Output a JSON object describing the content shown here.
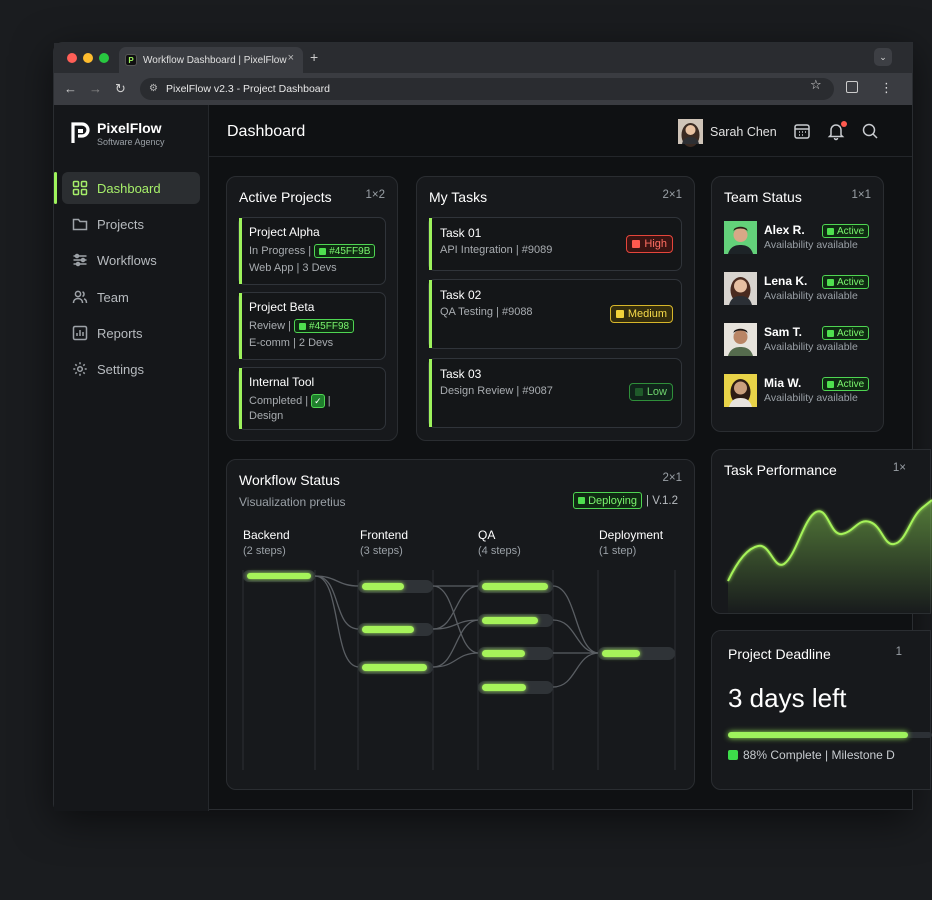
{
  "browser": {
    "tab_title": "Workflow Dashboard | PixelFlow",
    "tab_favicon": "P",
    "close_glyph": "×",
    "new_tab_glyph": "+",
    "tab_menu_glyph": "⌄",
    "url": "PixelFlow v2.3 - Project Dashboard",
    "back_glyph": "←",
    "forward_glyph": "→",
    "reload_glyph": "↻",
    "site_info_glyph": "⚙",
    "star_glyph": "☆",
    "menu_glyph": "⋮"
  },
  "sidebar": {
    "brand": "PixelFlow",
    "subtitle": "Software Agency",
    "items": [
      {
        "label": "Dashboard",
        "icon": "grid-icon"
      },
      {
        "label": "Projects",
        "icon": "folder-icon"
      },
      {
        "label": "Workflows",
        "icon": "sliders-icon"
      },
      {
        "label": "Team",
        "icon": "users-icon"
      },
      {
        "label": "Reports",
        "icon": "bar-chart-icon"
      },
      {
        "label": "Settings",
        "icon": "gear-icon"
      }
    ]
  },
  "header": {
    "title": "Dashboard",
    "user_name": "Sarah Chen"
  },
  "active_projects": {
    "title": "Active Projects",
    "size": "1×2",
    "items": [
      {
        "name": "Project Alpha",
        "status": "In Progress |",
        "chip": "#45FF9B",
        "detail": "Web App | 3 Devs"
      },
      {
        "name": "Project Beta",
        "status": "Review |",
        "chip": "#45FF98",
        "detail": "E-comm | 2 Devs"
      },
      {
        "name": "Internal Tool",
        "status": "Completed |",
        "chip": "✓",
        "chip_suffix": "|",
        "detail": "Design"
      }
    ]
  },
  "my_tasks": {
    "title": "My Tasks",
    "size": "2×1",
    "items": [
      {
        "name": "Task 01",
        "sub": "API Integration | #9089",
        "priority": "High"
      },
      {
        "name": "Task 02",
        "sub": "QA Testing | #9088",
        "priority": "Medium"
      },
      {
        "name": "Task 03",
        "sub": "Design Review | #9087",
        "priority": "Low"
      }
    ]
  },
  "team_status": {
    "title": "Team Status",
    "size": "1×1",
    "members": [
      {
        "name": "Alex R.",
        "status": "Active",
        "availability": "Availability available"
      },
      {
        "name": "Lena K.",
        "status": "Active",
        "availability": "Availability available"
      },
      {
        "name": "Sam T.",
        "status": "Active",
        "availability": "Availability available"
      },
      {
        "name": "Mia W.",
        "status": "Active",
        "availability": "Availability available"
      }
    ]
  },
  "workflow": {
    "title": "Workflow Status",
    "size": "2×1",
    "subtitle": "Visualization pretius",
    "deploy_chip": "Deploying",
    "version": "| V.1.2",
    "columns": [
      {
        "title": "Backend",
        "sub": "(2 steps)"
      },
      {
        "title": "Frontend",
        "sub": "(3 steps)"
      },
      {
        "title": "QA",
        "sub": "(4 steps)"
      },
      {
        "title": "Deployment",
        "sub": "(1 step)"
      }
    ]
  },
  "task_performance": {
    "title": "Task Performance",
    "size": "1×"
  },
  "deadline": {
    "title": "Project Deadline",
    "size": "1",
    "remaining": "3 days left",
    "progress": 0.88,
    "status_text": "88% Complete | Milestone D"
  },
  "colors": {
    "accent": "#9ef35c",
    "high": "#ff5a4f",
    "medium": "#f2d23a",
    "low": "#39b54a"
  }
}
